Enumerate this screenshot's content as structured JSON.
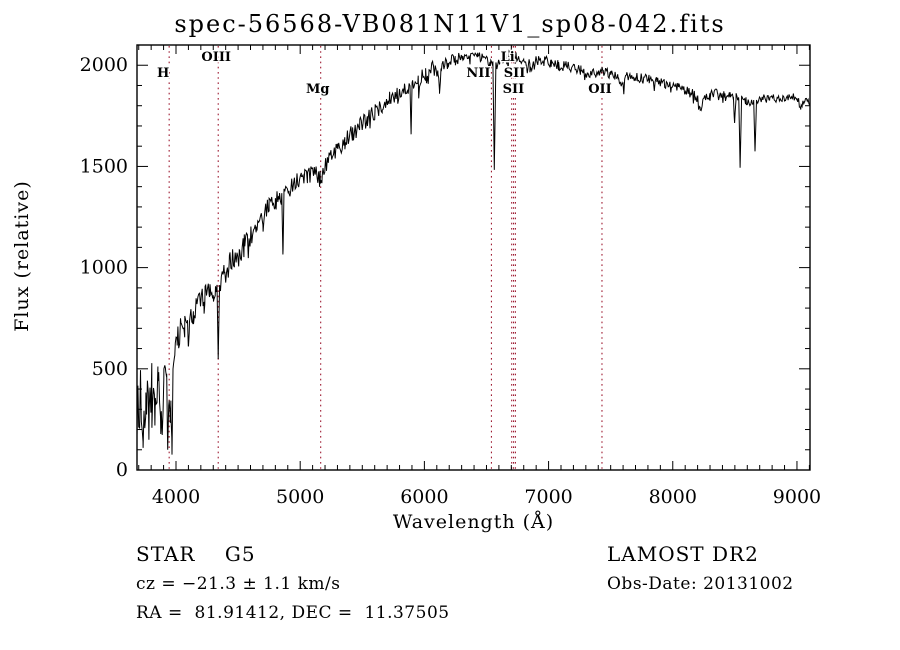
{
  "window": {
    "background": "#ffffff"
  },
  "chart_data": {
    "type": "line",
    "title": "spec-56568-VB081N11V1_sp08-042.fits",
    "xlabel": "Wavelength (Å)",
    "ylabel": "Flux (relative)",
    "xlim": [
      3686,
      9105
    ],
    "ylim": [
      0,
      2100
    ],
    "x_major_ticks": [
      4000,
      5000,
      6000,
      7000,
      8000,
      9000
    ],
    "x_minor_step": 100,
    "y_major_ticks": [
      0,
      500,
      1000,
      1500,
      2000
    ],
    "y_minor_step": 100,
    "grid": false,
    "legend": "none",
    "axis_color": "#000000",
    "series_color": "#000000",
    "spectral_line_color": "#9e1b32",
    "spectral_lines": [
      {
        "label": "H",
        "wavelength": 3945,
        "row": 2,
        "dx": -6
      },
      {
        "label": "OIII",
        "wavelength": 4340,
        "row": 1,
        "dx": -2
      },
      {
        "label": "Mg",
        "wavelength": 5165,
        "row": 3,
        "dx": -3
      },
      {
        "label": "NII",
        "wavelength": 6540,
        "row": 2,
        "dx": -13
      },
      {
        "label": "Li",
        "wavelength": 6703,
        "row": 1,
        "dx": -4
      },
      {
        "label": "SII",
        "wavelength": 6718,
        "row": 2,
        "dx": 1
      },
      {
        "label": "SII",
        "wavelength": 6733,
        "row": 3,
        "dx": -2
      },
      {
        "label": "OII",
        "wavelength": 7430,
        "row": 3,
        "dx": -2
      }
    ],
    "label_rows_y": {
      "1": 61,
      "2": 77,
      "3": 93
    },
    "noise": {
      "seed": 20131002,
      "step": 7,
      "spike_prob": 0.05,
      "spike_scale": 2.0
    },
    "anchors": [
      [
        3686,
        300,
        170
      ],
      [
        3710,
        380,
        170
      ],
      [
        3734,
        250,
        160
      ],
      [
        3758,
        420,
        150
      ],
      [
        3782,
        260,
        150
      ],
      [
        3806,
        430,
        140
      ],
      [
        3830,
        290,
        130
      ],
      [
        3854,
        460,
        120
      ],
      [
        3878,
        250,
        110
      ],
      [
        3889,
        180,
        60
      ],
      [
        3902,
        420,
        90
      ],
      [
        3915,
        540,
        80
      ],
      [
        3925,
        470,
        60
      ],
      [
        3933,
        95,
        25
      ],
      [
        3941,
        330,
        60
      ],
      [
        3954,
        260,
        70
      ],
      [
        3960,
        300,
        50
      ],
      [
        3968,
        78,
        20
      ],
      [
        3976,
        480,
        60
      ],
      [
        3990,
        590,
        60
      ],
      [
        4010,
        650,
        65
      ],
      [
        4040,
        690,
        65
      ],
      [
        4070,
        720,
        65
      ],
      [
        4093,
        730,
        50
      ],
      [
        4101,
        615,
        30
      ],
      [
        4109,
        745,
        50
      ],
      [
        4140,
        780,
        65
      ],
      [
        4180,
        830,
        65
      ],
      [
        4218,
        860,
        55
      ],
      [
        4226,
        790,
        35
      ],
      [
        4234,
        870,
        55
      ],
      [
        4270,
        890,
        60
      ],
      [
        4300,
        880,
        50
      ],
      [
        4308,
        830,
        40
      ],
      [
        4318,
        895,
        50
      ],
      [
        4330,
        890,
        40
      ],
      [
        4340,
        555,
        25
      ],
      [
        4352,
        920,
        45
      ],
      [
        4390,
        970,
        60
      ],
      [
        4430,
        1020,
        60
      ],
      [
        4470,
        1060,
        60
      ],
      [
        4510,
        1080,
        60
      ],
      [
        4550,
        1110,
        60
      ],
      [
        4600,
        1150,
        55
      ],
      [
        4650,
        1200,
        55
      ],
      [
        4700,
        1260,
        55
      ],
      [
        4750,
        1300,
        50
      ],
      [
        4800,
        1330,
        50
      ],
      [
        4830,
        1350,
        45
      ],
      [
        4852,
        1340,
        30
      ],
      [
        4861,
        1065,
        20
      ],
      [
        4870,
        1370,
        30
      ],
      [
        4910,
        1395,
        50
      ],
      [
        4960,
        1415,
        50
      ],
      [
        5010,
        1440,
        48
      ],
      [
        5060,
        1460,
        48
      ],
      [
        5110,
        1470,
        46
      ],
      [
        5160,
        1450,
        40
      ],
      [
        5175,
        1445,
        35
      ],
      [
        5200,
        1500,
        45
      ],
      [
        5250,
        1545,
        45
      ],
      [
        5300,
        1580,
        45
      ],
      [
        5360,
        1625,
        45
      ],
      [
        5420,
        1665,
        45
      ],
      [
        5480,
        1700,
        45
      ],
      [
        5540,
        1735,
        42
      ],
      [
        5600,
        1770,
        42
      ],
      [
        5660,
        1805,
        42
      ],
      [
        5720,
        1840,
        40
      ],
      [
        5780,
        1865,
        40
      ],
      [
        5840,
        1885,
        38
      ],
      [
        5885,
        1890,
        25
      ],
      [
        5893,
        1665,
        18
      ],
      [
        5901,
        1900,
        25
      ],
      [
        5950,
        1925,
        38
      ],
      [
        6010,
        1960,
        36
      ],
      [
        6070,
        1990,
        36
      ],
      [
        6110,
        1960,
        30
      ],
      [
        6122,
        1880,
        25
      ],
      [
        6134,
        1995,
        30
      ],
      [
        6190,
        2015,
        34
      ],
      [
        6250,
        2030,
        34
      ],
      [
        6310,
        2030,
        34
      ],
      [
        6370,
        2035,
        34
      ],
      [
        6430,
        2040,
        32
      ],
      [
        6490,
        2025,
        30
      ],
      [
        6530,
        2010,
        26
      ],
      [
        6552,
        2005,
        20
      ],
      [
        6563,
        1485,
        12
      ],
      [
        6576,
        2015,
        20
      ],
      [
        6620,
        2030,
        30
      ],
      [
        6680,
        2040,
        30
      ],
      [
        6740,
        2035,
        30
      ],
      [
        6800,
        2030,
        30
      ],
      [
        6850,
        2000,
        26
      ],
      [
        6870,
        1985,
        24
      ],
      [
        6900,
        2020,
        26
      ],
      [
        6960,
        2030,
        28
      ],
      [
        7020,
        2015,
        28
      ],
      [
        7080,
        2000,
        28
      ],
      [
        7140,
        1995,
        28
      ],
      [
        7200,
        1985,
        28
      ],
      [
        7260,
        1975,
        26
      ],
      [
        7320,
        1960,
        26
      ],
      [
        7380,
        1965,
        26
      ],
      [
        7440,
        1965,
        26
      ],
      [
        7500,
        1955,
        26
      ],
      [
        7560,
        1945,
        24
      ],
      [
        7594,
        1905,
        20
      ],
      [
        7630,
        1945,
        24
      ],
      [
        7690,
        1940,
        24
      ],
      [
        7750,
        1935,
        24
      ],
      [
        7810,
        1930,
        24
      ],
      [
        7870,
        1920,
        24
      ],
      [
        7930,
        1910,
        24
      ],
      [
        7990,
        1900,
        24
      ],
      [
        8050,
        1890,
        24
      ],
      [
        8110,
        1875,
        24
      ],
      [
        8170,
        1855,
        26
      ],
      [
        8220,
        1810,
        26
      ],
      [
        8230,
        1775,
        24
      ],
      [
        8245,
        1830,
        24
      ],
      [
        8300,
        1850,
        26
      ],
      [
        8360,
        1865,
        24
      ],
      [
        8420,
        1860,
        24
      ],
      [
        8460,
        1850,
        22
      ],
      [
        8488,
        1845,
        16
      ],
      [
        8498,
        1705,
        10
      ],
      [
        8510,
        1850,
        16
      ],
      [
        8532,
        1835,
        14
      ],
      [
        8542,
        1485,
        10
      ],
      [
        8554,
        1840,
        14
      ],
      [
        8590,
        1825,
        20
      ],
      [
        8620,
        1815,
        20
      ],
      [
        8652,
        1815,
        14
      ],
      [
        8662,
        1575,
        10
      ],
      [
        8674,
        1825,
        14
      ],
      [
        8720,
        1835,
        20
      ],
      [
        8780,
        1840,
        20
      ],
      [
        8840,
        1835,
        20
      ],
      [
        8900,
        1830,
        20
      ],
      [
        8950,
        1845,
        20
      ],
      [
        9000,
        1840,
        18
      ],
      [
        9030,
        1795,
        18
      ],
      [
        9060,
        1830,
        18
      ],
      [
        9105,
        1815,
        18
      ]
    ]
  },
  "annotations": {
    "class_line": "STAR    G5",
    "survey": "LAMOST DR2",
    "cz_line": "cz = −21.3 ± 1.1 km/s",
    "obs_date": "Obs-Date: 20131002",
    "radec_line": "RA =  81.91412, DEC =  11.37505"
  }
}
